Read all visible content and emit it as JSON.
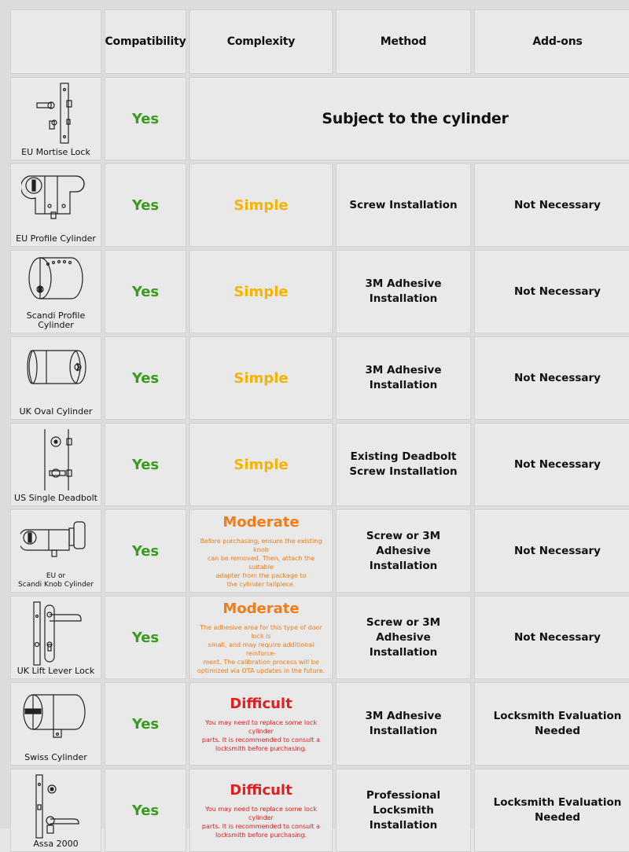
{
  "headers": {
    "compatibility": "Compatibility",
    "complexity": "Complexity",
    "method": "Method",
    "addons": "Add-ons"
  },
  "rows": [
    {
      "type": "EU Mortise Lock",
      "compat": "Yes",
      "merged": "Subject to the cylinder",
      "icon": "eu-mortise-lock-icon"
    },
    {
      "type": "EU Profile Cylinder",
      "compat": "Yes",
      "complexity": "Simple",
      "method": "Screw Installation",
      "addons": "Not Necessary",
      "icon": "eu-profile-cylinder-icon"
    },
    {
      "type": "Scandi Profile Cylinder",
      "compat": "Yes",
      "complexity": "Simple",
      "method": "3M Adhesive Installation",
      "addons": "Not Necessary",
      "icon": "scandi-profile-cylinder-icon"
    },
    {
      "type": "UK Oval Cylinder",
      "compat": "Yes",
      "complexity": "Simple",
      "method": "3M Adhesive Installation",
      "addons": "Not Necessary",
      "icon": "uk-oval-cylinder-icon"
    },
    {
      "type": "US Single Deadbolt",
      "compat": "Yes",
      "complexity": "Simple",
      "method": "Existing Deadbolt\nScrew Installation",
      "addons": "Not Necessary",
      "icon": "us-single-deadbolt-icon"
    },
    {
      "type": "EU or\nScandi Knob Cylinder",
      "compat": "Yes",
      "complexity": "Moderate",
      "note": "Before purchasing, ensure the existing knob\ncan be removed. Then, attach the suitable\nadapter from the package to\nthe cylinder tailpiece.",
      "method": "Screw or 3M\nAdhesive Installation",
      "addons": "Not Necessary",
      "icon": "knob-cylinder-icon"
    },
    {
      "type": "UK Lift Lever Lock",
      "compat": "Yes",
      "complexity": "Moderate",
      "note": "The adhesive area for this type of door lock is\nsmall, and may require additional reinforce-\nment. The calibration process will be\noptimized via OTA updates in the future.",
      "method": "Screw or 3M\nAdhesive Installation",
      "addons": "Not Necessary",
      "icon": "uk-lift-lever-lock-icon"
    },
    {
      "type": "Swiss Cylinder",
      "compat": "Yes",
      "complexity": "Difficult",
      "note": "You may need to replace some lock cylinder\nparts. It is recommended to consult a\nlocksmith before purchasing.",
      "method": "3M Adhesive Installation",
      "addons": "Locksmith Evaluation Needed",
      "icon": "swiss-cylinder-icon"
    },
    {
      "type": "Assa 2000",
      "compat": "Yes",
      "complexity": "Difficult",
      "note": "You may need to replace some lock cylinder\nparts. It is recommended to consult a\nlocksmith before purchasing.",
      "method": "Professional\nLocksmith Installation",
      "addons": "Locksmith Evaluation Needed",
      "icon": "assa-2000-icon"
    }
  ],
  "colors": {
    "yes": "#3b9b1e",
    "simple": "#f4b400",
    "moderate": "#f07d17",
    "difficult": "#e41e1e"
  }
}
